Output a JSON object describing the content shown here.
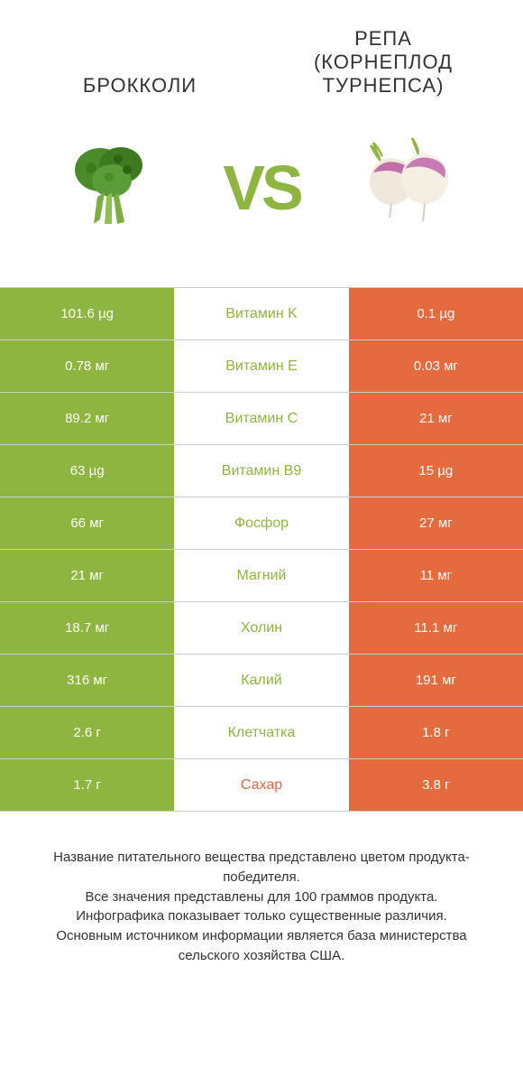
{
  "header": {
    "left": "БРОККОЛИ",
    "right_line1": "РЕПА",
    "right_line2": "(КОРНЕПЛОД",
    "right_line3": "ТУРНЕПСА)"
  },
  "vs": "VS",
  "colors": {
    "left_bg": "#8eb53f",
    "right_bg": "#e56a3e",
    "mid_text_left": "#8eb53f",
    "mid_text_right": "#e56a3e",
    "header_text": "#333333",
    "cell_text": "#ffffff",
    "border": "#cccccc",
    "background": "#ffffff",
    "vs_color": "#8eb53f"
  },
  "rows": [
    {
      "left": "101.6 µg",
      "mid": "Витамин K",
      "right": "0.1 µg",
      "winner": "left"
    },
    {
      "left": "0.78 мг",
      "mid": "Витамин E",
      "right": "0.03 мг",
      "winner": "left"
    },
    {
      "left": "89.2 мг",
      "mid": "Витамин C",
      "right": "21 мг",
      "winner": "left"
    },
    {
      "left": "63 µg",
      "mid": "Витамин B9",
      "right": "15 µg",
      "winner": "left"
    },
    {
      "left": "66 мг",
      "mid": "Фосфор",
      "right": "27 мг",
      "winner": "left"
    },
    {
      "left": "21 мг",
      "mid": "Магний",
      "right": "11 мг",
      "winner": "left"
    },
    {
      "left": "18.7 мг",
      "mid": "Холин",
      "right": "11.1 мг",
      "winner": "left"
    },
    {
      "left": "316 мг",
      "mid": "Калий",
      "right": "191 мг",
      "winner": "left"
    },
    {
      "left": "2.6 г",
      "mid": "Клетчатка",
      "right": "1.8 г",
      "winner": "left"
    },
    {
      "left": "1.7 г",
      "mid": "Сахар",
      "right": "3.8 г",
      "winner": "right"
    }
  ],
  "footer": {
    "l1": "Название питательного вещества представлено цветом продукта-победителя.",
    "l2": "Все значения представлены для 100 граммов продукта.",
    "l3": "Инфографика показывает только существенные различия.",
    "l4": "Основным источником информации является база министерства сельского хозяйства США."
  },
  "icons": {
    "broccoli_color": "#4a8c2a",
    "broccoli_stem": "#7ab040",
    "turnip_top": "#b55a9e",
    "turnip_body": "#f0e8dc",
    "turnip_leaf": "#8eb53f"
  }
}
